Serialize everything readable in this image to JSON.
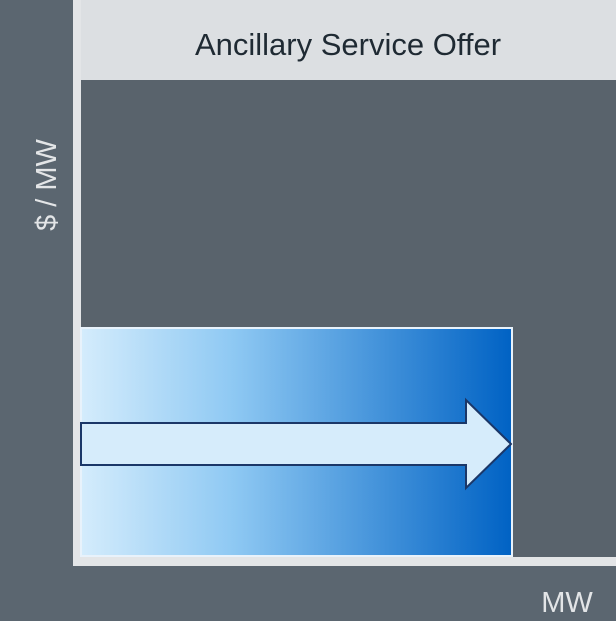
{
  "title": "Ancillary Service Offer",
  "y_axis_label": "$ / MW",
  "x_axis_label": "MW"
}
